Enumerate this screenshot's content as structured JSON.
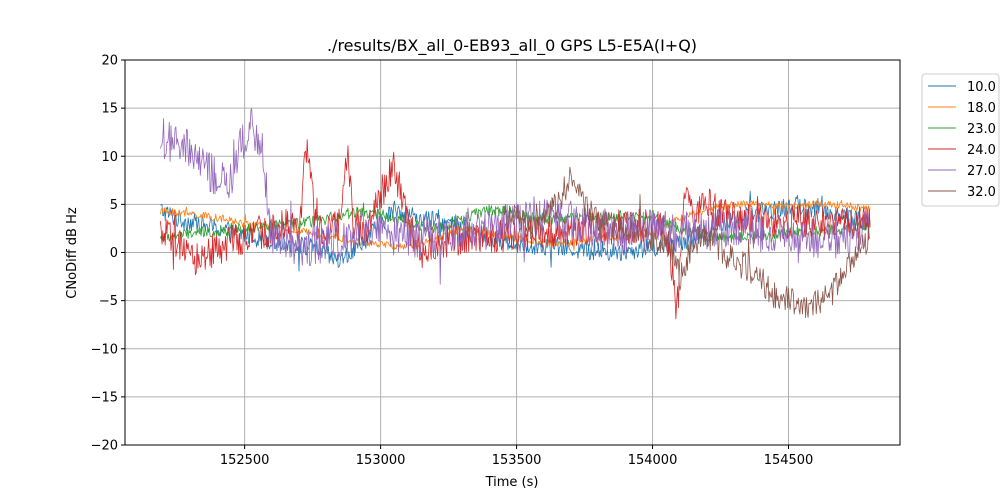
{
  "chart_data": {
    "type": "line",
    "title": "./results/BX_all_0-EB93_all_0 GPS L5-E5A(I+Q)",
    "xlabel": "Time (s)",
    "ylabel": "CNoDiff dB Hz",
    "xlim": [
      152060,
      154910
    ],
    "ylim": [
      -20,
      20
    ],
    "xticks": [
      152500,
      153000,
      153500,
      154000,
      154500
    ],
    "xtick_labels": [
      "152500",
      "153000",
      "153500",
      "154000",
      "154500"
    ],
    "yticks": [
      -20,
      -15,
      -10,
      -5,
      0,
      5,
      10,
      15,
      20
    ],
    "ytick_labels": [
      "−20",
      "−15",
      "−10",
      "−5",
      "0",
      "5",
      "10",
      "15",
      "20"
    ],
    "grid": true,
    "legend_position": "outside-top-right",
    "series": [
      {
        "name": "10.0",
        "color": "#1f77b4",
        "x": [
          152190,
          152250,
          152350,
          152450,
          152550,
          152650,
          152750,
          152850,
          152950,
          153050,
          153150,
          153250,
          153350,
          153450,
          153550,
          153650,
          153750,
          153850,
          153950,
          154050,
          154150,
          154250,
          154350,
          154450,
          154550,
          154650,
          154750,
          154800
        ],
        "y": [
          4.5,
          3.5,
          2.8,
          2.2,
          1.5,
          1.0,
          0.5,
          -1.0,
          1.5,
          4.5,
          3.5,
          3.0,
          2.0,
          1.2,
          0.8,
          0.6,
          0.2,
          0.0,
          0.3,
          0.8,
          1.5,
          3.0,
          4.0,
          4.5,
          4.8,
          4.2,
          3.5,
          3.2
        ],
        "noise": 1.0
      },
      {
        "name": "18.0",
        "color": "#ff7f0e",
        "x": [
          152190,
          152300,
          152400,
          152500,
          152600,
          152700,
          152800,
          152900,
          153000,
          153100,
          153200,
          153300,
          153400,
          153500,
          153600,
          153700,
          153800,
          153900,
          154000,
          154100,
          154200,
          154300,
          154400,
          154500,
          154600,
          154700,
          154800
        ],
        "y": [
          4.3,
          4.0,
          3.6,
          3.0,
          2.6,
          2.2,
          1.8,
          1.2,
          0.8,
          0.6,
          1.5,
          2.5,
          2.0,
          1.5,
          1.0,
          1.0,
          1.5,
          1.6,
          2.0,
          3.5,
          4.5,
          5.0,
          5.0,
          4.8,
          5.0,
          5.0,
          4.5
        ],
        "noise": 0.4
      },
      {
        "name": "23.0",
        "color": "#2ca02c",
        "x": [
          152190,
          152300,
          152400,
          152500,
          152600,
          152700,
          152800,
          152900,
          153000,
          153100,
          153200,
          153300,
          153400,
          153500,
          153600,
          153700,
          153800,
          153900,
          154000,
          154100,
          154200,
          154300,
          154400,
          154500,
          154600,
          154700,
          154800
        ],
        "y": [
          1.5,
          2.0,
          2.2,
          2.5,
          2.8,
          3.0,
          3.5,
          4.2,
          4.0,
          3.0,
          2.5,
          3.5,
          4.5,
          4.0,
          3.5,
          3.6,
          3.6,
          3.8,
          3.8,
          2.5,
          1.5,
          1.6,
          1.8,
          2.0,
          2.2,
          2.5,
          2.8
        ],
        "noise": 0.6
      },
      {
        "name": "24.0",
        "color": "#d62728",
        "x": [
          152190,
          152250,
          152300,
          152400,
          152500,
          152600,
          152650,
          152700,
          152730,
          152760,
          152800,
          152850,
          152880,
          152900,
          152950,
          153000,
          153050,
          153100,
          153150,
          153200,
          153300,
          154050,
          154090,
          154120,
          154150,
          154200,
          154250,
          154300,
          154400,
          154500,
          154600,
          154700,
          154800
        ],
        "y": [
          2.0,
          1.0,
          -1.0,
          0.5,
          1.5,
          2.5,
          3.0,
          2.5,
          12.0,
          3.0,
          2.0,
          3.0,
          11.0,
          2.5,
          2.5,
          6.0,
          9.0,
          3.0,
          0.0,
          1.0,
          1.5,
          3.0,
          -6.0,
          6.0,
          4.0,
          5.0,
          4.0,
          3.5,
          3.0,
          3.2,
          3.0,
          3.0,
          3.0
        ],
        "noise": 1.8
      },
      {
        "name": "27.0",
        "color": "#9467bd",
        "x": [
          152190,
          152250,
          152300,
          152350,
          152400,
          152450,
          152480,
          152520,
          152560,
          152600,
          152700,
          152800,
          152900,
          153000,
          153100,
          153200,
          153300,
          153400,
          153500,
          153600,
          153700,
          153800,
          153900,
          154000,
          154100,
          154200,
          154300,
          154400,
          154500,
          154600,
          154700,
          154800
        ],
        "y": [
          12.0,
          11.0,
          10.5,
          9.0,
          7.5,
          7.0,
          11.0,
          13.0,
          12.0,
          2.0,
          0.5,
          1.0,
          2.0,
          2.0,
          1.5,
          2.0,
          2.5,
          2.5,
          3.0,
          4.0,
          3.5,
          2.5,
          2.0,
          2.5,
          2.0,
          2.5,
          2.5,
          2.0,
          1.5,
          1.5,
          1.5,
          2.5
        ],
        "noise": 2.2
      },
      {
        "name": "32.0",
        "color": "#8c564b",
        "x": [
          153450,
          153500,
          153550,
          153600,
          153650,
          153700,
          153750,
          153800,
          153850,
          153900,
          153950,
          154000,
          154050,
          154080,
          154100,
          154150,
          154200,
          154250,
          154300,
          154350,
          154400,
          154450,
          154500,
          154550,
          154600,
          154650,
          154700,
          154750,
          154800
        ],
        "y": [
          4.0,
          3.5,
          2.5,
          3.5,
          5.0,
          8.0,
          5.0,
          3.0,
          2.8,
          2.5,
          2.0,
          1.5,
          1.0,
          0.0,
          -3.0,
          1.0,
          2.0,
          0.5,
          -1.0,
          -1.5,
          -3.0,
          -4.5,
          -5.0,
          -5.5,
          -5.0,
          -4.5,
          -2.5,
          0.0,
          1.5
        ],
        "noise": 1.5
      }
    ]
  }
}
